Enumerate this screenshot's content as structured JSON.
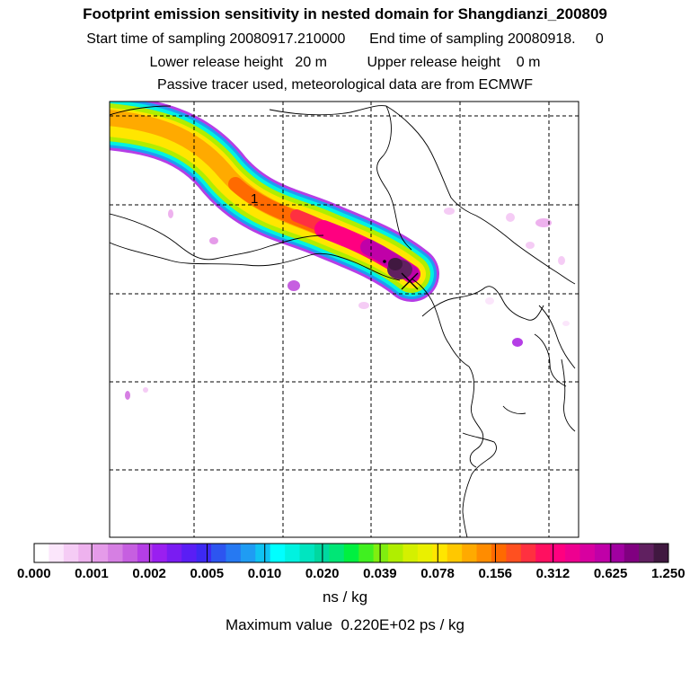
{
  "header": {
    "title": "Footprint emission sensitivity in nested domain for Shangdianzi_200809",
    "start_label": "Start time of sampling 20080917.210000",
    "end_label": "End time of sampling 20080918.     0",
    "lower_label": "Lower release height   20 m",
    "upper_label": "Upper release height    0 m",
    "tracer_label": "Passive tracer used, meteorological data are from ECMWF"
  },
  "map": {
    "marker_label": "1"
  },
  "colorbar": {
    "labels": [
      "0.000",
      "0.001",
      "0.002",
      "0.005",
      "0.010",
      "0.020",
      "0.039",
      "0.078",
      "0.156",
      "0.312",
      "0.625",
      "1.250"
    ],
    "colors": [
      "#ffffff",
      "#fbe6fb",
      "#f5ccf5",
      "#eeb2ee",
      "#e59be9",
      "#d67fe3",
      "#c65fe0",
      "#b53ee6",
      "#9a1ff0",
      "#7a1cf2",
      "#5a1ef5",
      "#3d29f2",
      "#2d55f0",
      "#2679f2",
      "#1f9cf3",
      "#10c3f2",
      "#00ffff",
      "#00f2e0",
      "#00e5c0",
      "#00d8a0",
      "#00e676",
      "#00f040",
      "#40f020",
      "#80ee10",
      "#b0ee00",
      "#d4f000",
      "#eaf000",
      "#ffe600",
      "#ffc800",
      "#ffaa00",
      "#ff8c00",
      "#ff6a00",
      "#ff5020",
      "#ff3040",
      "#ff1060",
      "#ff0080",
      "#ee0090",
      "#d800a0",
      "#c000a8",
      "#a000a0",
      "#800080",
      "#602060",
      "#401840"
    ]
  },
  "units": "ns / kg",
  "max_value": "Maximum value  0.220E+02 ps / kg"
}
